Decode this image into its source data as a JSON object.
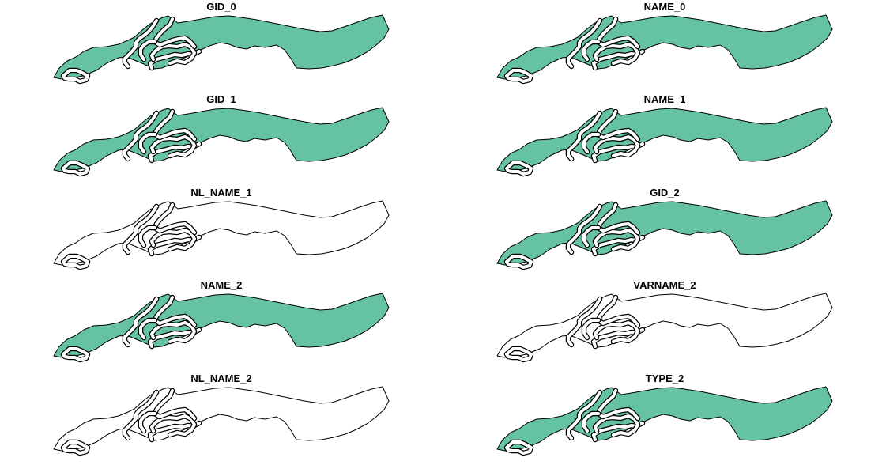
{
  "fill_color": "#66c2a5",
  "outline_color": "#000000",
  "background_color": "#ffffff",
  "panels": [
    {
      "title": "GID_0",
      "filled": true
    },
    {
      "title": "NAME_0",
      "filled": true
    },
    {
      "title": "GID_1",
      "filled": true
    },
    {
      "title": "NAME_1",
      "filled": true
    },
    {
      "title": "NL_NAME_1",
      "filled": false
    },
    {
      "title": "GID_2",
      "filled": true
    },
    {
      "title": "NAME_2",
      "filled": true
    },
    {
      "title": "VARNAME_2",
      "filled": false
    },
    {
      "title": "NL_NAME_2",
      "filled": false
    },
    {
      "title": "TYPE_2",
      "filled": true
    }
  ]
}
